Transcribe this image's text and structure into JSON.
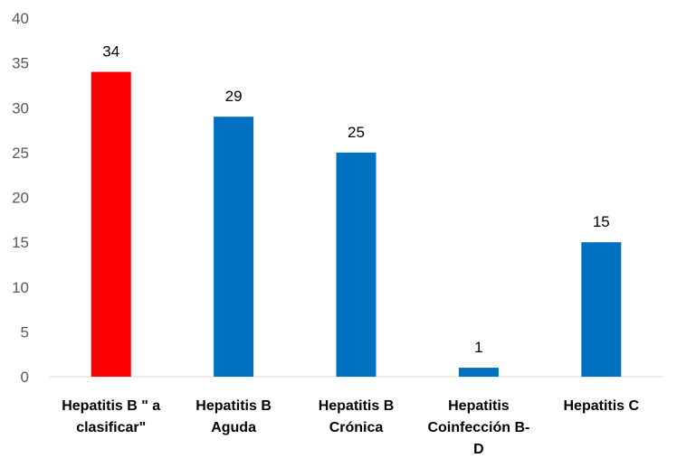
{
  "chart_data": {
    "type": "bar",
    "categories": [
      [
        "Hepatitis B \" a",
        "clasificar\""
      ],
      [
        "Hepatitis B",
        "Aguda"
      ],
      [
        "Hepatitis B",
        "Crónica"
      ],
      [
        "Hepatitis",
        "Coinfección B-",
        "D"
      ],
      [
        "Hepatitis C"
      ]
    ],
    "values": [
      34,
      29,
      25,
      1,
      15
    ],
    "bar_colors": [
      "#ff0000",
      "#0070c0",
      "#0070c0",
      "#0070c0",
      "#0070c0"
    ],
    "ylim": [
      0,
      40
    ],
    "yticks": [
      0,
      5,
      10,
      15,
      20,
      25,
      30,
      35,
      40
    ],
    "grid": false,
    "legend": "none",
    "axis_color": "#d9d9d9"
  }
}
